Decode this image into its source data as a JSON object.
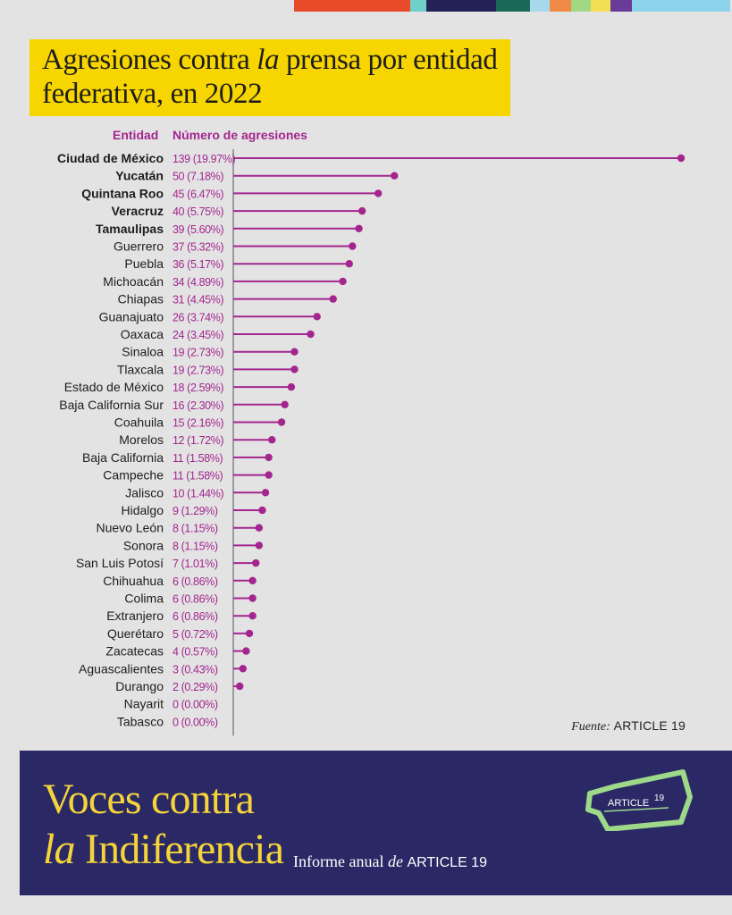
{
  "top_stripe_colors": [
    "#e84a2a",
    "#6fd0c9",
    "#232259",
    "#1a6a5a",
    "#a8d8ec",
    "#f08a48",
    "#a2d884",
    "#f3df52",
    "#6a3c9a",
    "#8dd3ec"
  ],
  "title": {
    "line1_a": "Agresiones contra ",
    "line1_b": "la",
    "line1_c": " prensa por entidad",
    "line2": "federativa, en 2022"
  },
  "headers": {
    "entity": "Entidad",
    "count": "Número de agresiones"
  },
  "accent_color": "#a3268f",
  "source": {
    "label": "Fuente:",
    "value": "ARTICLE 19"
  },
  "footer": {
    "brand_line1": "Voces contra",
    "brand_line2_a": "la",
    "brand_line2_b": " Indiferencia",
    "report_a": "Informe anual ",
    "report_b": "de",
    "report_c": "ARTICLE 19",
    "logo_text": "ARTICLE",
    "logo_number": "19",
    "logo_color": "#9ed98a"
  },
  "chart_data": {
    "type": "bar",
    "style": "lollipop-horizontal",
    "xlim": [
      0,
      139
    ],
    "categories": [
      "Ciudad de México",
      "Yucatán",
      "Quintana Roo",
      "Veracruz",
      "Tamaulipas",
      "Guerrero",
      "Puebla",
      "Michoacán",
      "Chiapas",
      "Guanajuato",
      "Oaxaca",
      "Sinaloa",
      "Tlaxcala",
      "Estado de México",
      "Baja California Sur",
      "Coahuila",
      "Morelos",
      "Baja California",
      "Campeche",
      "Jalisco",
      "Hidalgo",
      "Nuevo León",
      "Sonora",
      "San Luis Potosí",
      "Chihuahua",
      "Colima",
      "Extranjero",
      "Querétaro",
      "Zacatecas",
      "Aguascalientes",
      "Durango",
      "Nayarit",
      "Tabasco"
    ],
    "values": [
      139,
      50,
      45,
      40,
      39,
      37,
      36,
      34,
      31,
      26,
      24,
      19,
      19,
      18,
      16,
      15,
      12,
      11,
      11,
      10,
      9,
      8,
      8,
      7,
      6,
      6,
      6,
      5,
      4,
      3,
      2,
      0,
      0
    ],
    "labels": [
      "139 (19.97%)",
      "50 (7.18%)",
      "45 (6.47%)",
      "40 (5.75%)",
      "39 (5.60%)",
      "37 (5.32%)",
      "36 (5.17%)",
      "34 (4.89%)",
      "31 (4.45%)",
      "26 (3.74%)",
      "24 (3.45%)",
      "19 (2.73%)",
      "19 (2.73%)",
      "18 (2.59%)",
      "16 (2.30%)",
      "15 (2.16%)",
      "12 (1.72%)",
      "11 (1.58%)",
      "11 (1.58%)",
      "10 (1.44%)",
      "9 (1.29%)",
      "8 (1.15%)",
      "8 (1.15%)",
      "7 (1.01%)",
      "6 (0.86%)",
      "6 (0.86%)",
      "6 (0.86%)",
      "5 (0.72%)",
      "4 (0.57%)",
      "3 (0.43%)",
      "2 (0.29%)",
      "0 (0.00%)",
      "0 (0.00%)"
    ],
    "bold_categories": [
      "Ciudad de México",
      "Yucatán",
      "Quintana Roo",
      "Veracruz",
      "Tamaulipas"
    ],
    "grid": false
  }
}
